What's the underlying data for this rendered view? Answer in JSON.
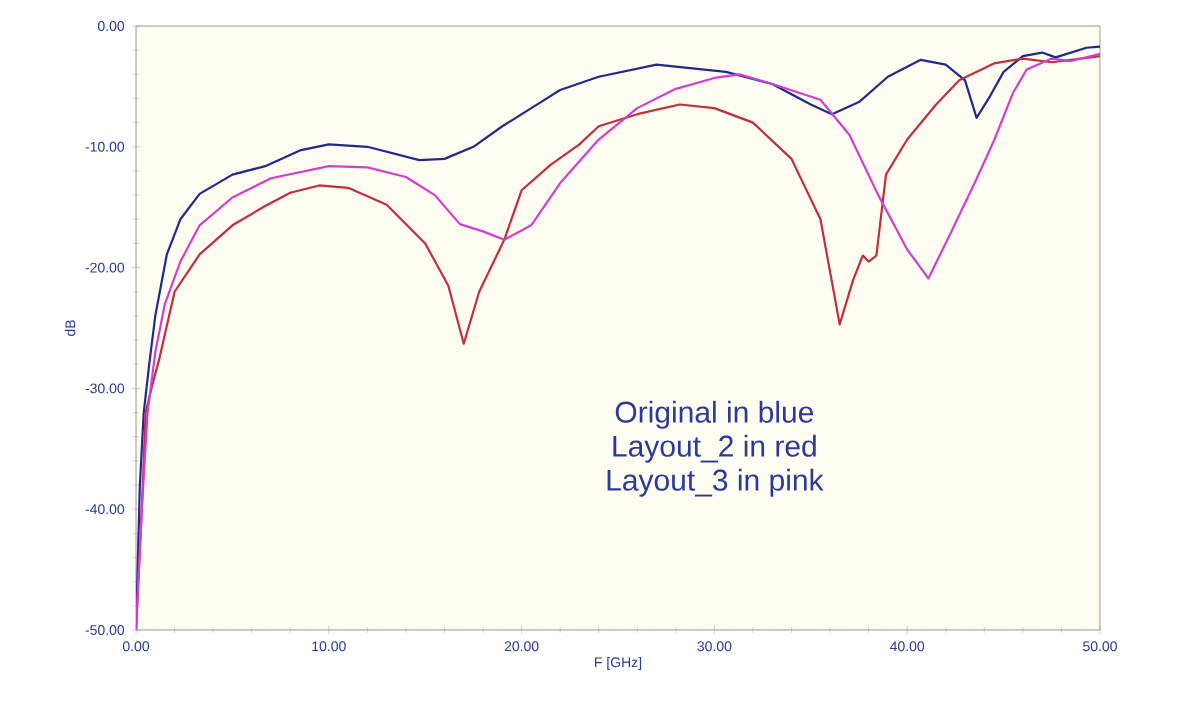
{
  "chart_data": {
    "type": "line",
    "xlabel": "F [GHz]",
    "ylabel": "dB",
    "xlim": [
      0,
      50
    ],
    "ylim": [
      -50,
      0
    ],
    "xticks": [
      {
        "value": 0,
        "label": "0.00"
      },
      {
        "value": 10,
        "label": "10.00"
      },
      {
        "value": 20,
        "label": "20.00"
      },
      {
        "value": 30,
        "label": "30.00"
      },
      {
        "value": 40,
        "label": "40.00"
      },
      {
        "value": 50,
        "label": "50.00"
      }
    ],
    "yticks": [
      {
        "value": -50,
        "label": "-50.00"
      },
      {
        "value": -40,
        "label": "-40.00"
      },
      {
        "value": -30,
        "label": "-30.00"
      },
      {
        "value": -20,
        "label": "-20.00"
      },
      {
        "value": -10,
        "label": "-10.00"
      },
      {
        "value": 0,
        "label": "0.00"
      }
    ],
    "annotations": [
      "Original in blue",
      "Layout_2 in red",
      "Layout_3 in pink"
    ],
    "series": [
      {
        "color": "#1f2a8c",
        "x": [
          0,
          0.2,
          0.4,
          0.7,
          1.0,
          1.6,
          2.3,
          3.3,
          5,
          6.7,
          8.5,
          10,
          12,
          14.7,
          16,
          17.5,
          19,
          21,
          22,
          24,
          27,
          30.6,
          33,
          35,
          36.1,
          37.5,
          39,
          40.7,
          42,
          43,
          43.6,
          44.3,
          45,
          46,
          47,
          47.7,
          48.5,
          49.3,
          50
        ],
        "values": [
          -50,
          -38,
          -32,
          -27.8,
          -24,
          -18.9,
          -16,
          -13.9,
          -12.3,
          -11.6,
          -10.3,
          -9.8,
          -10,
          -11.1,
          -11,
          -10,
          -8.3,
          -6.3,
          -5.3,
          -4.2,
          -3.2,
          -3.8,
          -4.8,
          -6.5,
          -7.3,
          -6.3,
          -4.2,
          -2.8,
          -3.2,
          -4.5,
          -7.6,
          -5.8,
          -3.8,
          -2.5,
          -2.2,
          -2.6,
          -2.2,
          -1.8,
          -1.7
        ]
      },
      {
        "color": "#c0303a",
        "x": [
          0,
          0.3,
          0.5,
          0.8,
          1.2,
          2,
          3.3,
          5,
          6.7,
          8,
          9.5,
          11,
          13,
          15,
          16.2,
          17,
          17.8,
          19.1,
          20,
          21.5,
          23,
          24,
          26,
          28.2,
          30,
          32,
          34,
          35.5,
          36.5,
          37.2,
          37.7,
          38,
          38.4,
          38.9,
          40,
          41.5,
          42.7,
          44.5,
          46,
          47.5,
          48.5,
          50
        ],
        "values": [
          -50,
          -40,
          -32,
          -30,
          -27.6,
          -22,
          -18.9,
          -16.5,
          -14.9,
          -13.8,
          -13.2,
          -13.4,
          -14.8,
          -18,
          -21.5,
          -26.3,
          -22,
          -17.7,
          -13.6,
          -11.5,
          -9.8,
          -8.3,
          -7.3,
          -6.5,
          -6.8,
          -8,
          -11,
          -16,
          -24.7,
          -21,
          -19,
          -19.5,
          -19,
          -12.3,
          -9.4,
          -6.5,
          -4.5,
          -3.1,
          -2.7,
          -3,
          -2.8,
          -2.5
        ]
      },
      {
        "color": "#d040d0",
        "x": [
          0,
          0.3,
          0.6,
          1,
          1.5,
          2.3,
          3.3,
          5,
          7,
          10,
          12,
          14,
          15.5,
          16.8,
          18,
          19.1,
          20.5,
          22,
          24,
          26,
          28,
          30,
          31.3,
          33,
          35.5,
          37,
          38.5,
          40,
          41.1,
          42.3,
          43.5,
          44.5,
          45.5,
          46.2,
          47.5,
          48.5,
          50
        ],
        "values": [
          -50,
          -40,
          -32,
          -27,
          -23,
          -19.5,
          -16.5,
          -14.2,
          -12.6,
          -11.6,
          -11.7,
          -12.5,
          -14,
          -16.4,
          -17,
          -17.7,
          -16.5,
          -13,
          -9.4,
          -6.8,
          -5.2,
          -4.3,
          -4,
          -4.8,
          -6.1,
          -9,
          -14,
          -18.5,
          -20.9,
          -17,
          -13,
          -9.5,
          -5.5,
          -3.6,
          -2.7,
          -2.9,
          -2.3
        ]
      }
    ]
  }
}
